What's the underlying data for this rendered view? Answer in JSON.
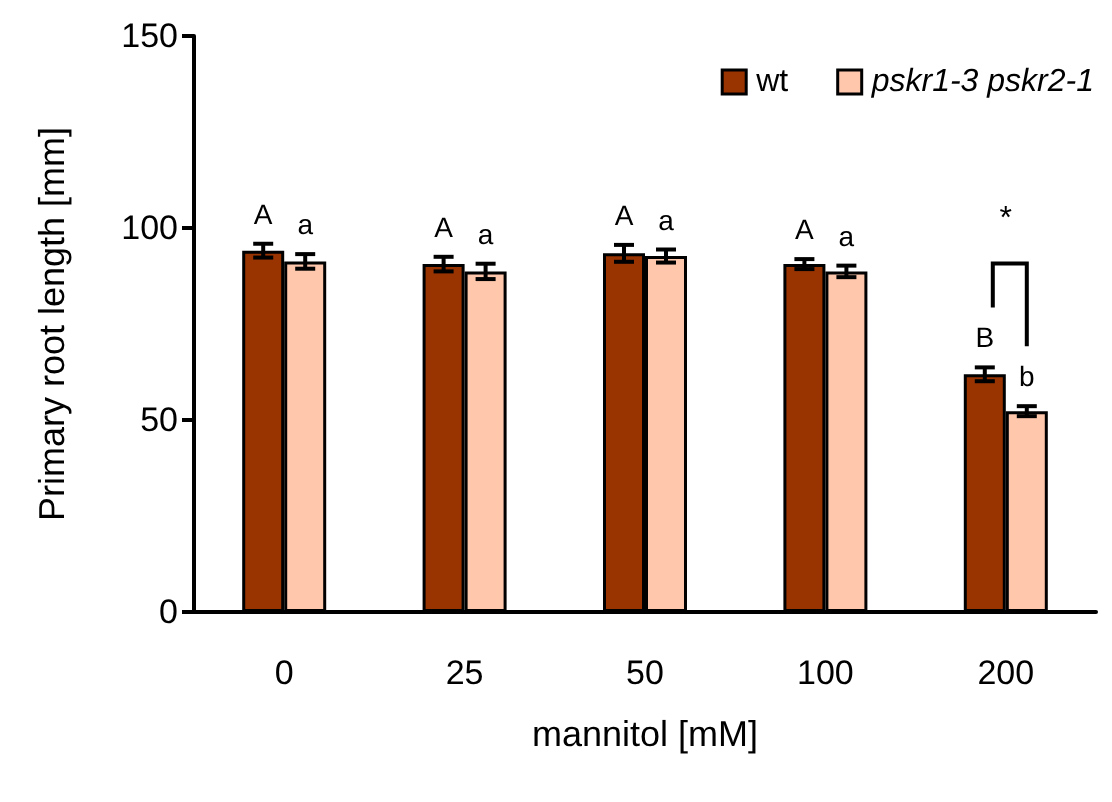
{
  "chart_data": {
    "type": "bar",
    "xlabel": "mannitol [mM]",
    "ylabel": "Primary root length [mm]",
    "categories": [
      "0",
      "25",
      "50",
      "100",
      "200"
    ],
    "series": [
      {
        "name": "wt",
        "color": "#993300",
        "values": [
          94.1,
          90.6,
          93.4,
          90.6,
          61.9
        ],
        "errors": [
          1.8,
          1.9,
          2.2,
          1.3,
          1.8
        ],
        "value_labels": [
          "A",
          "A",
          "A",
          "A",
          "B"
        ]
      },
      {
        "name": "pskr1-3 pskr2-1",
        "color": "#ffc7ac",
        "values": [
          91.3,
          88.7,
          92.7,
          88.7,
          52.3
        ],
        "errors": [
          1.9,
          2.0,
          1.7,
          1.5,
          1.3
        ],
        "value_labels": [
          "a",
          "a",
          "a",
          "a",
          "b"
        ]
      }
    ],
    "annotations": [
      "*"
    ],
    "ylim": [
      0,
      150
    ],
    "yticks": [
      0,
      50,
      100,
      150
    ],
    "grid": false,
    "legend": "top right"
  }
}
